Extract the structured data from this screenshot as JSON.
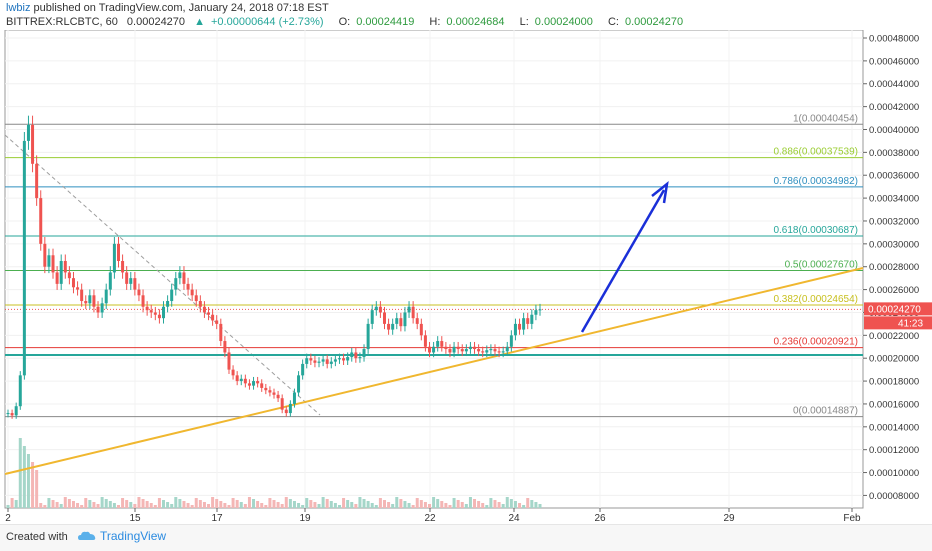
{
  "header": {
    "author": "lwbiz",
    "published": "published on TradingView.com, January 24, 2018 07:18 EST",
    "symbol": "BITTREX:RLCBTC, 60",
    "last": "0.00024270",
    "change_arrow": "▲",
    "change": "+0.00000644 (+2.73%)",
    "o_label": "O:",
    "o_value": "0.00024419",
    "h_label": "H:",
    "h_value": "0.00024684",
    "l_label": "L:",
    "l_value": "0.00024000",
    "c_label": "C:",
    "c_value": "0.00024270"
  },
  "footer": {
    "created_with": "Created with",
    "brand": "TradingView",
    "brand_icon": "tradingview-cloud-icon"
  },
  "colors": {
    "up": "#26a69a",
    "down": "#ef5350",
    "trendline": "#f0b72f",
    "arrow": "#1a2fd8",
    "price_tag": "#ef5350"
  },
  "chart_data": {
    "type": "candlestick",
    "symbol": "BITTREX:RLCBTC",
    "interval": "60",
    "x_ticks": [
      "2",
      "15",
      "17",
      "19",
      "22",
      "24",
      "26",
      "29",
      "Feb"
    ],
    "y_ticks": [
      "0.00008000",
      "0.00010000",
      "0.00012000",
      "0.00014000",
      "0.00016000",
      "0.00018000",
      "0.00020000",
      "0.00022000",
      "0.00024000",
      "0.00026000",
      "0.00028000",
      "0.00030000",
      "0.00032000",
      "0.00034000",
      "0.00036000",
      "0.00038000",
      "0.00040000",
      "0.00042000",
      "0.00044000",
      "0.00046000",
      "0.00048000"
    ],
    "ylim": [
      6.9e-05,
      0.000487
    ],
    "last_price_label": "0.00024270",
    "countdown_label": "41:23",
    "fib_levels": [
      {
        "label": "1(0.00040454)",
        "value": 0.00040454,
        "color": "#888888"
      },
      {
        "label": "0.886(0.00037539)",
        "value": 0.00037539,
        "color": "#9acd32"
      },
      {
        "label": "0.786(0.00034982)",
        "value": 0.00034982,
        "color": "#2f8fbf"
      },
      {
        "label": "0.618(0.00030687)",
        "value": 0.00030687,
        "color": "#26a69a"
      },
      {
        "label": "0.5(0.00027670)",
        "value": 0.0002767,
        "color": "#4caf50"
      },
      {
        "label": "0.382(0.00024654)",
        "value": 0.00024654,
        "color": "#c8c020"
      },
      {
        "label": "0.236(0.00020921)",
        "value": 0.00020921,
        "color": "#e53935"
      },
      {
        "label": "0(0.00014887)",
        "value": 0.00014887,
        "color": "#888888"
      }
    ],
    "candles_close": [
      0.000152,
      0.00015,
      0.000158,
      0.000185,
      0.00039,
      0.000404,
      0.00037,
      0.00034,
      0.0003,
      0.00028,
      0.00029,
      0.000275,
      0.000265,
      0.000285,
      0.000275,
      0.00027,
      0.000262,
      0.00026,
      0.00025,
      0.000248,
      0.000255,
      0.000245,
      0.00024,
      0.000248,
      0.00026,
      0.000275,
      0.0003,
      0.000285,
      0.000275,
      0.000265,
      0.00027,
      0.00026,
      0.000255,
      0.000245,
      0.000242,
      0.00024,
      0.000238,
      0.000235,
      0.000245,
      0.00025,
      0.00026,
      0.00027,
      0.000275,
      0.000265,
      0.00026,
      0.000255,
      0.00025,
      0.000245,
      0.00024,
      0.000238,
      0.000233,
      0.00023,
      0.000215,
      0.000205,
      0.00019,
      0.000185,
      0.00018,
      0.000182,
      0.000178,
      0.000176,
      0.00018,
      0.000178,
      0.000174,
      0.000172,
      0.00017,
      0.000168,
      0.000165,
      0.000155,
      0.000152,
      0.00016,
      0.00017,
      0.000185,
      0.000195,
      0.0002,
      0.000198,
      0.000196,
      0.000197,
      0.000199,
      0.000195,
      0.000197,
      0.000199,
      0.0002,
      0.000198,
      0.000201,
      0.000205,
      0.0002,
      0.000201,
      0.000208,
      0.00023,
      0.000242,
      0.000245,
      0.00024,
      0.00023,
      0.000225,
      0.00023,
      0.000235,
      0.000228,
      0.00024,
      0.000245,
      0.000235,
      0.00023,
      0.00022,
      0.00021,
      0.000205,
      0.00021,
      0.000215,
      0.00021,
      0.000208,
      0.000205,
      0.00021,
      0.000208,
      0.000206,
      0.000208,
      0.00021,
      0.000208,
      0.000206,
      0.000205,
      0.000207,
      0.000208,
      0.000206,
      0.000205,
      0.000206,
      0.00021,
      0.00022,
      0.00023,
      0.000225,
      0.000235,
      0.00023,
      0.000238,
      0.000242,
      0.0002427
    ]
  }
}
